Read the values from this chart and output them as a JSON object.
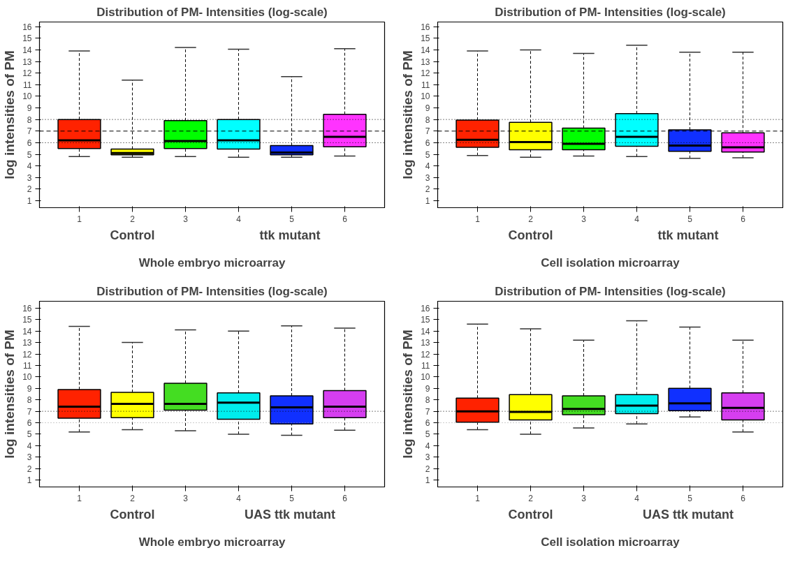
{
  "chart_data": [
    {
      "type": "box",
      "title": "Distribution of PM- Intensities (log-scale)",
      "ylabel": "log intensities of PM",
      "categories": [
        "1",
        "2",
        "3",
        "4",
        "5",
        "6"
      ],
      "colors": [
        "#ff2200",
        "#ffff00",
        "#00ff00",
        "#00ffff",
        "#1030ff",
        "#ff33ff"
      ],
      "boxes": [
        {
          "low": 4.8,
          "q1": 5.5,
          "median": 6.2,
          "q3": 8.0,
          "high": 13.9
        },
        {
          "low": 4.75,
          "q1": 4.95,
          "median": 5.1,
          "q3": 5.45,
          "high": 11.4
        },
        {
          "low": 4.8,
          "q1": 5.5,
          "median": 6.15,
          "q3": 7.9,
          "high": 14.2
        },
        {
          "low": 4.75,
          "q1": 5.45,
          "median": 6.2,
          "q3": 8.0,
          "high": 14.05
        },
        {
          "low": 4.75,
          "q1": 4.95,
          "median": 5.15,
          "q3": 5.75,
          "high": 11.7
        },
        {
          "low": 4.85,
          "q1": 5.65,
          "median": 6.5,
          "q3": 8.45,
          "high": 14.1
        }
      ],
      "ylim": [
        0.4,
        16.4
      ],
      "yticks": [
        1,
        2,
        3,
        4,
        5,
        6,
        7,
        8,
        9,
        10,
        11,
        12,
        13,
        14,
        15,
        16
      ],
      "grid": false,
      "ref_lines": [
        {
          "axis": "y",
          "value": 6,
          "line_style": "dotted",
          "color": "#000000"
        },
        {
          "axis": "y",
          "value": 7,
          "line_style": "dashed",
          "color": "#000000"
        },
        {
          "axis": "y",
          "value": 8,
          "line_style": "dotted",
          "color": "#000000"
        }
      ],
      "annotations": [
        "Control",
        "ttk  mutant",
        "Whole embryo microarray"
      ]
    },
    {
      "type": "box",
      "title": "Distribution of PM- Intensities (log-scale)",
      "ylabel": "log intensities of PM",
      "categories": [
        "1",
        "2",
        "3",
        "4",
        "5",
        "6"
      ],
      "colors": [
        "#ff2200",
        "#ffff00",
        "#00ff00",
        "#00ffff",
        "#1030ff",
        "#ff33ff"
      ],
      "boxes": [
        {
          "low": 4.9,
          "q1": 5.6,
          "median": 6.25,
          "q3": 7.95,
          "high": 13.9
        },
        {
          "low": 4.75,
          "q1": 5.4,
          "median": 6.05,
          "q3": 7.75,
          "high": 14.0
        },
        {
          "low": 4.85,
          "q1": 5.4,
          "median": 5.9,
          "q3": 7.25,
          "high": 13.7
        },
        {
          "low": 4.8,
          "q1": 5.7,
          "median": 6.5,
          "q3": 8.5,
          "high": 14.4
        },
        {
          "low": 4.65,
          "q1": 5.25,
          "median": 5.75,
          "q3": 7.1,
          "high": 13.8
        },
        {
          "low": 4.7,
          "q1": 5.2,
          "median": 5.6,
          "q3": 6.85,
          "high": 13.8
        }
      ],
      "ylim": [
        0.4,
        16.4
      ],
      "yticks": [
        1,
        2,
        3,
        4,
        5,
        6,
        7,
        8,
        9,
        10,
        11,
        12,
        13,
        14,
        15,
        16
      ],
      "grid": false,
      "ref_lines": [
        {
          "axis": "y",
          "value": 6,
          "line_style": "dotted",
          "color": "#000000"
        },
        {
          "axis": "y",
          "value": 7,
          "line_style": "dashed",
          "color": "#000000"
        },
        {
          "axis": "y",
          "value": 8,
          "line_style": "dotted",
          "color": "#000000"
        }
      ],
      "annotations": [
        "Control",
        "ttk  mutant",
        "Cell isolation microarray"
      ]
    },
    {
      "type": "box",
      "title": "Distribution of PM- Intensities (log-scale)",
      "ylabel": "log intensities of PM",
      "categories": [
        "1",
        "2",
        "3",
        "4",
        "5",
        "6"
      ],
      "colors": [
        "#ff2200",
        "#ffff00",
        "#44dd22",
        "#00eeee",
        "#1030ff",
        "#d63ef0"
      ],
      "boxes": [
        {
          "low": 5.2,
          "q1": 6.4,
          "median": 7.4,
          "q3": 8.9,
          "high": 14.4
        },
        {
          "low": 5.4,
          "q1": 6.45,
          "median": 7.65,
          "q3": 8.65,
          "high": 13.0
        },
        {
          "low": 5.3,
          "q1": 7.1,
          "median": 7.65,
          "q3": 9.45,
          "high": 14.1
        },
        {
          "low": 5.0,
          "q1": 6.3,
          "median": 7.75,
          "q3": 8.6,
          "high": 14.0
        },
        {
          "low": 4.9,
          "q1": 5.9,
          "median": 7.35,
          "q3": 8.35,
          "high": 14.45
        },
        {
          "low": 5.35,
          "q1": 6.45,
          "median": 7.4,
          "q3": 8.8,
          "high": 14.25
        }
      ],
      "ylim": [
        0.4,
        16.6
      ],
      "yticks": [
        1,
        2,
        3,
        4,
        5,
        6,
        7,
        8,
        9,
        10,
        11,
        12,
        13,
        14,
        15,
        16
      ],
      "grid": false,
      "ref_lines": [
        {
          "axis": "y",
          "value": 6,
          "line_style": "dotted",
          "color": "#999999"
        },
        {
          "axis": "y",
          "value": 7,
          "line_style": "dotted",
          "color": "#000000"
        }
      ],
      "annotations": [
        "Control",
        "UAS ttk  mutant",
        "Whole embryo microarray"
      ]
    },
    {
      "type": "box",
      "title": "Distribution of PM- Intensities (log-scale)",
      "ylabel": "log intensities of PM",
      "categories": [
        "1",
        "2",
        "3",
        "4",
        "5",
        "6"
      ],
      "colors": [
        "#ff2200",
        "#ffff00",
        "#44dd22",
        "#00eeee",
        "#1030ff",
        "#d63ef0"
      ],
      "boxes": [
        {
          "low": 5.4,
          "q1": 6.05,
          "median": 7.0,
          "q3": 8.15,
          "high": 14.6
        },
        {
          "low": 5.0,
          "q1": 6.25,
          "median": 6.95,
          "q3": 8.45,
          "high": 14.2
        },
        {
          "low": 5.55,
          "q1": 6.7,
          "median": 7.2,
          "q3": 8.35,
          "high": 13.2
        },
        {
          "low": 5.9,
          "q1": 6.8,
          "median": 7.5,
          "q3": 8.45,
          "high": 14.9
        },
        {
          "low": 6.5,
          "q1": 7.05,
          "median": 7.7,
          "q3": 9.0,
          "high": 14.35
        },
        {
          "low": 5.2,
          "q1": 6.25,
          "median": 7.3,
          "q3": 8.6,
          "high": 13.2
        }
      ],
      "ylim": [
        0.4,
        16.6
      ],
      "yticks": [
        1,
        2,
        3,
        4,
        5,
        6,
        7,
        8,
        9,
        10,
        11,
        12,
        13,
        14,
        15,
        16
      ],
      "grid": false,
      "ref_lines": [
        {
          "axis": "y",
          "value": 6,
          "line_style": "dotted",
          "color": "#999999"
        },
        {
          "axis": "y",
          "value": 7,
          "line_style": "dotted",
          "color": "#000000"
        }
      ],
      "annotations": [
        "Control",
        "UAS ttk  mutant",
        "Cell isolation microarray"
      ]
    }
  ]
}
